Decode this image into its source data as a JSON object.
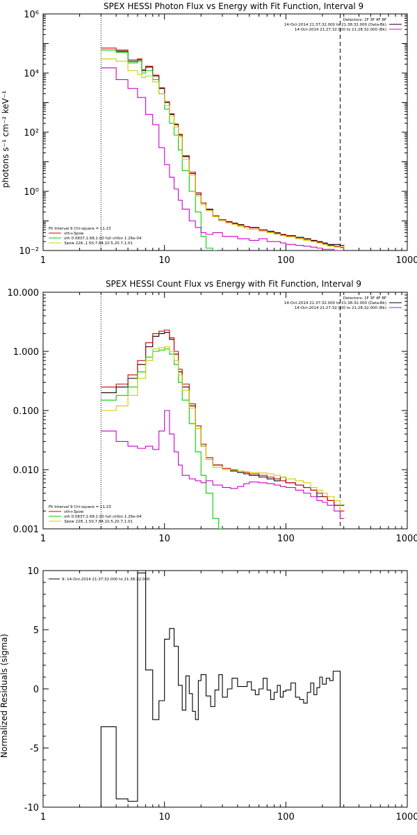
{
  "chart_data": [
    {
      "type": "line",
      "title": "SPEX HESSI Photon Flux vs Energy with Fit Function, Interval 9",
      "ylabel": "photons s⁻¹ cm⁻² keV⁻¹",
      "xlabel": "",
      "xscale": "log",
      "yscale": "log",
      "xlim": [
        1,
        1000
      ],
      "ylim": [
        0.01,
        1000000
      ],
      "xticks": [
        {
          "v": 1,
          "label": "1"
        },
        {
          "v": 10,
          "label": "10"
        },
        {
          "v": 100,
          "label": "100"
        },
        {
          "v": 1000,
          "label": "1000"
        }
      ],
      "yticks": [
        {
          "v": 0.01,
          "label": "10⁻²"
        },
        {
          "v": 1,
          "label": "10⁰"
        },
        {
          "v": 100,
          "label": "10²"
        },
        {
          "v": 10000,
          "label": "10⁴"
        },
        {
          "v": 1000000,
          "label": "10⁶"
        }
      ],
      "vlines": [
        {
          "x": 3,
          "style": "dotted",
          "color": "#000000"
        },
        {
          "x": 280,
          "style": "dashed",
          "color": "#000000"
        }
      ],
      "legend_top_right": [
        {
          "text": "Detectors: 1F 3F 4F 8F",
          "color": null
        },
        {
          "text": "14-Oct-2014 21:37:32.000 to 21:38:32.000 (Data-Bk)",
          "color": "#000000"
        },
        {
          "text": "14-Oct-2014 21:27:32.000 to 21:28:32.000 (Bk)",
          "color": "#cc00cc"
        }
      ],
      "legend_bottom_left": [
        {
          "text": "Fit Interval 9   Chi-square = 11.23",
          "color": null
        },
        {
          "text": "vth+3pow",
          "color": "#cc0000"
        },
        {
          "text": "vth 0.0837,1.68,1.00  full chfon 1.26e-04",
          "color": "#00cc00"
        },
        {
          "text": "3pow 228.,1.50,7.84,10.5,20.7,1.01",
          "color": "#cccc00"
        }
      ],
      "series": [
        {
          "color": "#000000",
          "x": [
            3,
            4,
            5,
            6,
            6.5,
            7,
            8,
            9,
            10,
            11,
            12,
            13,
            14,
            16,
            18,
            20,
            22,
            25,
            28,
            32,
            36,
            40,
            45,
            50,
            60,
            70,
            80,
            90,
            100,
            120,
            140,
            160,
            180,
            200,
            220,
            250,
            280
          ],
          "y": [
            60000,
            55000,
            25000,
            28000,
            12000,
            16000,
            8000,
            3000,
            1000,
            400,
            180,
            80,
            15,
            4,
            0.8,
            0.4,
            0.25,
            0.15,
            0.11,
            0.095,
            0.085,
            0.075,
            0.065,
            0.06,
            0.05,
            0.045,
            0.04,
            0.035,
            0.032,
            0.028,
            0.025,
            0.022,
            0.02,
            0.018,
            0.016,
            0.016,
            0.015
          ]
        },
        {
          "color": "#cc0000",
          "x": [
            3,
            4,
            5,
            6,
            6.5,
            7,
            8,
            9,
            10,
            11,
            12,
            13,
            14,
            16,
            18,
            20,
            22,
            25,
            28,
            32,
            36,
            40,
            45,
            50,
            60,
            70,
            80,
            90,
            100,
            120,
            140,
            160,
            180,
            200,
            220,
            250,
            280
          ],
          "y": [
            70000,
            60000,
            28000,
            30000,
            13000,
            17000,
            8500,
            3200,
            1100,
            420,
            190,
            85,
            16,
            4.5,
            0.9,
            0.4,
            0.24,
            0.15,
            0.11,
            0.092,
            0.082,
            0.072,
            0.064,
            0.058,
            0.049,
            0.043,
            0.038,
            0.034,
            0.031,
            0.027,
            0.024,
            0.021,
            0.019,
            0.017,
            0.015,
            0.014,
            0.013
          ]
        },
        {
          "color": "#00cc00",
          "x": [
            3,
            4,
            5,
            6,
            6.5,
            7,
            8,
            9,
            10,
            11,
            12,
            13,
            14,
            16,
            18,
            20,
            22,
            25
          ],
          "y": [
            60000,
            50000,
            22000,
            25000,
            10000,
            12000,
            6000,
            2000,
            600,
            200,
            80,
            25,
            5,
            1,
            0.2,
            0.03,
            0.012,
            0.01
          ]
        },
        {
          "color": "#cccc00",
          "x": [
            3,
            4,
            5,
            6,
            6.5,
            7,
            8,
            9,
            10,
            11,
            12,
            13,
            14,
            16,
            18,
            20,
            22,
            25,
            28,
            32,
            36,
            40,
            45,
            50,
            60,
            70,
            80,
            90,
            100,
            120,
            140,
            160,
            180,
            200,
            220,
            250,
            280
          ],
          "y": [
            30000,
            25000,
            12000,
            9000,
            7000,
            8000,
            5000,
            2000,
            800,
            350,
            150,
            70,
            12,
            3.5,
            0.7,
            0.35,
            0.22,
            0.14,
            0.1,
            0.085,
            0.075,
            0.065,
            0.058,
            0.052,
            0.045,
            0.04,
            0.036,
            0.032,
            0.029,
            0.025,
            0.022,
            0.02,
            0.018,
            0.016,
            0.014,
            0.013,
            0.012
          ]
        },
        {
          "color": "#cc00cc",
          "x": [
            3,
            4,
            5,
            6,
            7,
            8,
            9,
            10,
            11,
            12,
            13,
            14,
            16,
            18,
            20,
            22,
            25,
            30,
            35,
            40,
            45,
            50,
            60,
            70,
            80,
            90,
            100,
            120,
            140,
            160,
            180,
            200,
            220,
            250,
            280
          ],
          "y": [
            15000,
            6000,
            3000,
            1500,
            400,
            180,
            30,
            8,
            3,
            1.2,
            0.5,
            0.25,
            0.1,
            0.06,
            0.04,
            0.035,
            0.04,
            0.03,
            0.03,
            0.025,
            0.025,
            0.022,
            0.025,
            0.02,
            0.02,
            0.018,
            0.016,
            0.015,
            0.014,
            0.013,
            0.012,
            0.011,
            0.011,
            0.01,
            0.01
          ]
        }
      ]
    },
    {
      "type": "line",
      "title": "SPEX HESSI Count Flux vs Energy with Fit Function, Interval 9",
      "xlabel": "",
      "ylabel": "",
      "xscale": "log",
      "yscale": "log",
      "xlim": [
        1,
        1000
      ],
      "ylim": [
        0.001,
        10
      ],
      "xticks": [
        {
          "v": 1,
          "label": "1"
        },
        {
          "v": 10,
          "label": "10"
        },
        {
          "v": 100,
          "label": "100"
        },
        {
          "v": 1000,
          "label": "1000"
        }
      ],
      "yticks": [
        {
          "v": 0.001,
          "label": "0.001"
        },
        {
          "v": 0.01,
          "label": "0.010"
        },
        {
          "v": 0.1,
          "label": "0.100"
        },
        {
          "v": 1,
          "label": "1.000"
        },
        {
          "v": 10,
          "label": "10.000"
        }
      ],
      "vlines": [
        {
          "x": 3,
          "style": "dotted",
          "color": "#000000"
        },
        {
          "x": 280,
          "style": "dashed",
          "color": "#000000"
        }
      ],
      "legend_top_right": [
        {
          "text": "Detectors: 1F 3F 4F 8F",
          "color": null
        },
        {
          "text": "14-Oct-2014 21:37:32.000 to 21:38:32.000 (Data-Bk)",
          "color": "#000000"
        },
        {
          "text": "14-Oct-2014 21:27:32.000 to 21:28:32.000 (Bk)",
          "color": "#cc00cc"
        }
      ],
      "legend_bottom_left": [
        {
          "text": "Fit Interval 9   Chi-square = 11.23",
          "color": null
        },
        {
          "text": "vth+3pow",
          "color": "#cc0000"
        },
        {
          "text": "vth 0.0837,1.68,1.00  full chfon 1.26e-04",
          "color": "#00cc00"
        },
        {
          "text": "3pow 228.,1.50,7.84,10.5,20.7,1.01",
          "color": "#cccc00"
        }
      ],
      "series": [
        {
          "color": "#000000",
          "x": [
            3,
            4,
            5,
            6,
            7,
            8,
            9,
            10,
            11,
            12,
            13,
            14,
            16,
            18,
            20,
            22,
            25,
            30,
            35,
            40,
            45,
            50,
            60,
            70,
            80,
            90,
            100,
            120,
            140,
            160,
            180,
            200,
            220,
            250,
            280
          ],
          "y": [
            0.2,
            0.25,
            0.35,
            0.6,
            1.2,
            1.8,
            2.0,
            2.1,
            1.6,
            0.9,
            0.45,
            0.25,
            0.12,
            0.05,
            0.025,
            0.015,
            0.012,
            0.01,
            0.0095,
            0.009,
            0.0085,
            0.008,
            0.0075,
            0.007,
            0.0065,
            0.0075,
            0.006,
            0.0055,
            0.005,
            0.0045,
            0.0035,
            0.0035,
            0.003,
            0.0025,
            0.0025
          ]
        },
        {
          "color": "#cc0000",
          "x": [
            3,
            4,
            5,
            6,
            7,
            8,
            9,
            10,
            11,
            12,
            13,
            14,
            16,
            18,
            20,
            22,
            25,
            30,
            35,
            40,
            45,
            50,
            60,
            70,
            80,
            90,
            100,
            120,
            140,
            160,
            180,
            200,
            220,
            250,
            280
          ],
          "y": [
            0.25,
            0.28,
            0.4,
            0.7,
            1.4,
            2.0,
            2.2,
            2.3,
            1.7,
            1.0,
            0.5,
            0.28,
            0.13,
            0.055,
            0.027,
            0.016,
            0.012,
            0.0105,
            0.01,
            0.0095,
            0.009,
            0.0085,
            0.008,
            0.0075,
            0.007,
            0.0065,
            0.006,
            0.0055,
            0.005,
            0.0045,
            0.004,
            0.0035,
            0.003,
            0.0025,
            0.002
          ]
        },
        {
          "color": "#00cc00",
          "x": [
            3,
            4,
            5,
            6,
            7,
            8,
            9,
            10,
            11,
            12,
            13,
            14,
            16,
            18,
            20,
            22,
            25,
            28
          ],
          "y": [
            0.15,
            0.18,
            0.25,
            0.45,
            0.8,
            1.0,
            1.05,
            1.1,
            0.9,
            0.6,
            0.3,
            0.15,
            0.06,
            0.02,
            0.008,
            0.004,
            0.0015,
            0.001
          ]
        },
        {
          "color": "#cccc00",
          "x": [
            3,
            4,
            5,
            6,
            7,
            8,
            9,
            10,
            11,
            12,
            13,
            14,
            16,
            18,
            20,
            22,
            25,
            30,
            35,
            40,
            45,
            50,
            60,
            70,
            80,
            90,
            100,
            120,
            140,
            160,
            180,
            200,
            220,
            250,
            280
          ],
          "y": [
            0.1,
            0.12,
            0.18,
            0.35,
            0.7,
            1.1,
            1.15,
            1.2,
            1.0,
            0.7,
            0.4,
            0.22,
            0.11,
            0.05,
            0.025,
            0.015,
            0.011,
            0.01,
            0.0098,
            0.0095,
            0.0092,
            0.009,
            0.0088,
            0.0085,
            0.008,
            0.0075,
            0.007,
            0.0065,
            0.006,
            0.005,
            0.0045,
            0.004,
            0.0035,
            0.003,
            0.0015
          ]
        },
        {
          "color": "#cc00cc",
          "x": [
            3,
            4,
            5,
            6,
            7,
            8,
            9,
            10,
            11,
            12,
            13,
            14,
            16,
            18,
            20,
            22,
            25,
            30,
            35,
            40,
            45,
            50,
            60,
            70,
            80,
            90,
            100,
            120,
            140,
            160,
            180,
            200,
            220,
            250,
            280
          ],
          "y": [
            0.045,
            0.03,
            0.025,
            0.023,
            0.025,
            0.022,
            0.045,
            0.1,
            0.04,
            0.02,
            0.012,
            0.008,
            0.007,
            0.0065,
            0.006,
            0.0065,
            0.0055,
            0.005,
            0.0048,
            0.0052,
            0.0058,
            0.0062,
            0.006,
            0.0058,
            0.0055,
            0.0052,
            0.005,
            0.0045,
            0.004,
            0.0035,
            0.003,
            0.0028,
            0.0025,
            0.002,
            0.0015
          ]
        }
      ]
    },
    {
      "type": "line",
      "title": "",
      "xlabel": "",
      "ylabel": "Normalized Residuals (sigma)",
      "xscale": "log",
      "yscale": "linear",
      "xlim": [
        1,
        1000
      ],
      "ylim": [
        -10,
        10
      ],
      "xticks": [
        {
          "v": 1,
          "label": "1"
        },
        {
          "v": 10,
          "label": "10"
        },
        {
          "v": 100,
          "label": "100"
        },
        {
          "v": 1000,
          "label": "1000"
        }
      ],
      "yticks": [
        {
          "v": -10,
          "label": "-10"
        },
        {
          "v": -5,
          "label": "-5"
        },
        {
          "v": 0,
          "label": "0"
        },
        {
          "v": 5,
          "label": "5"
        },
        {
          "v": 10,
          "label": "10"
        }
      ],
      "legend_top_left": [
        {
          "text": "9: 14-Oct-2014 21:37:32.000 to 21:38:32.000",
          "color": "#000000"
        }
      ],
      "series": [
        {
          "color": "#000000",
          "step": true,
          "edges": [
            3,
            4,
            5,
            6,
            6.5,
            7,
            7.5,
            8,
            9,
            10,
            11,
            12,
            13,
            14,
            15,
            16,
            17,
            18,
            19,
            20,
            22,
            24,
            26,
            28,
            30,
            33,
            36,
            40,
            44,
            48,
            52,
            56,
            60,
            65,
            70,
            75,
            80,
            85,
            90,
            95,
            100,
            110,
            120,
            130,
            140,
            150,
            160,
            170,
            180,
            190,
            200,
            215,
            230,
            245,
            260,
            280
          ],
          "values": [
            -3.2,
            -9.3,
            -9.5,
            9.8,
            9.8,
            1.6,
            1.6,
            -2.6,
            -1,
            4.2,
            5.1,
            3.6,
            0.3,
            -1.8,
            1.1,
            -0.4,
            -1.9,
            -2.6,
            0.7,
            1.2,
            -0.6,
            -1.5,
            -0.1,
            1.2,
            -0.7,
            0,
            0.9,
            0.2,
            0.2,
            0.6,
            -0.1,
            -0.5,
            0,
            0.9,
            -0.1,
            -0.9,
            -0.3,
            0.3,
            -0.7,
            -0.2,
            -0.1,
            0.5,
            -0.7,
            -0.9,
            -1.2,
            -0.3,
            0.5,
            -0.5,
            0.1,
            1,
            0.4,
            0.9,
            0.7,
            1.5,
            1.5
          ]
        }
      ]
    }
  ]
}
